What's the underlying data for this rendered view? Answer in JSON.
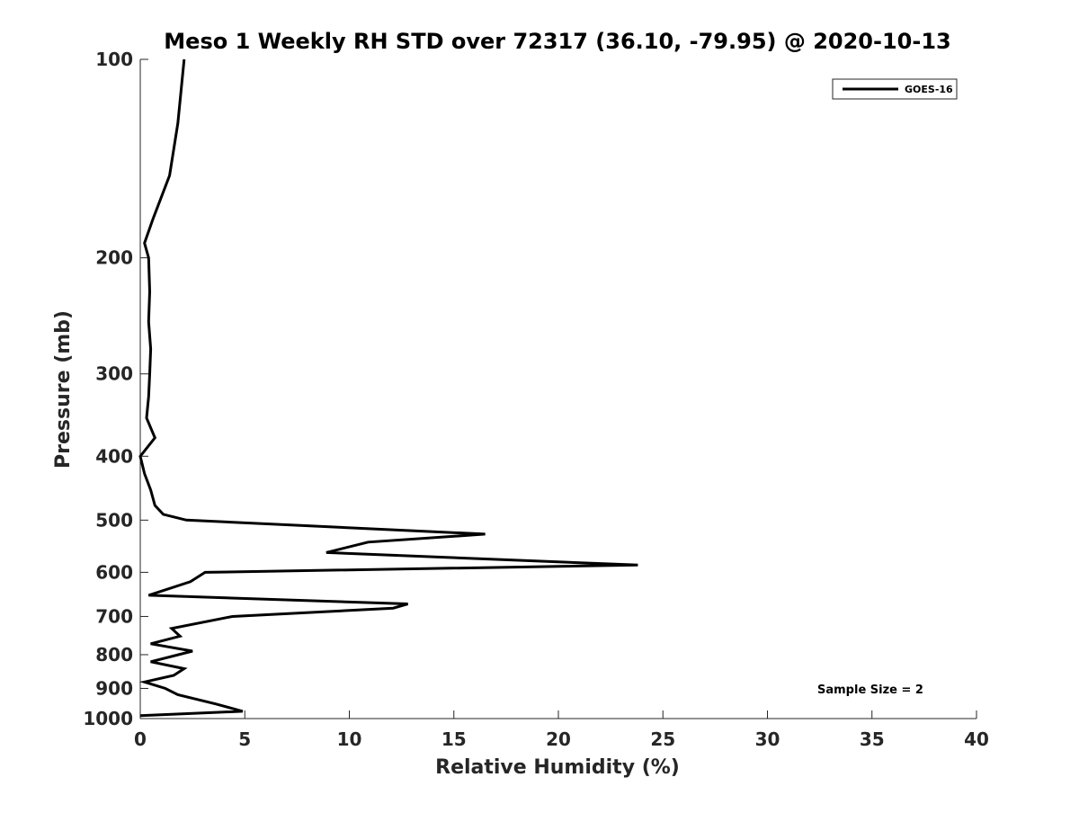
{
  "chart_data": {
    "type": "line",
    "title": "Meso 1 Weekly RH STD over 72317 (36.10, -79.95) @ 2020-10-13",
    "xlabel": "Relative Humidity (%)",
    "ylabel": "Pressure (mb)",
    "xlim": [
      0,
      40
    ],
    "ylim": [
      100,
      1000
    ],
    "y_scale": "log",
    "y_reversed": true,
    "x_ticks": [
      0,
      5,
      10,
      15,
      20,
      25,
      30,
      35,
      40
    ],
    "x_tick_labels": [
      "0",
      "5",
      "10",
      "15",
      "20",
      "25",
      "30",
      "35",
      "40"
    ],
    "y_ticks": [
      100,
      200,
      300,
      400,
      500,
      600,
      700,
      800,
      900,
      1000
    ],
    "y_tick_labels": [
      "100",
      "200",
      "300",
      "400",
      "500",
      "600",
      "700",
      "800",
      "900",
      "1000"
    ],
    "grid": false,
    "legend": {
      "position": "top-right",
      "entries": [
        "GOES-16"
      ]
    },
    "annotation": "Sample Size = 2",
    "series": [
      {
        "name": "GOES-16",
        "color": "#000000",
        "points": [
          [
            2.1,
            100
          ],
          [
            1.8,
            125
          ],
          [
            1.4,
            150
          ],
          [
            0.6,
            175
          ],
          [
            0.2,
            190
          ],
          [
            0.4,
            200
          ],
          [
            0.45,
            225
          ],
          [
            0.4,
            250
          ],
          [
            0.5,
            275
          ],
          [
            0.45,
            300
          ],
          [
            0.4,
            325
          ],
          [
            0.3,
            350
          ],
          [
            0.7,
            375
          ],
          [
            0.0,
            400
          ],
          [
            0.2,
            425
          ],
          [
            0.5,
            450
          ],
          [
            0.7,
            475
          ],
          [
            1.1,
            490
          ],
          [
            2.2,
            500
          ],
          [
            16.5,
            525
          ],
          [
            10.9,
            540
          ],
          [
            8.9,
            560
          ],
          [
            23.8,
            585
          ],
          [
            3.1,
            600
          ],
          [
            2.4,
            620
          ],
          [
            0.4,
            650
          ],
          [
            12.8,
            670
          ],
          [
            12.1,
            680
          ],
          [
            4.4,
            700
          ],
          [
            1.5,
            730
          ],
          [
            1.9,
            750
          ],
          [
            0.5,
            770
          ],
          [
            2.5,
            790
          ],
          [
            0.5,
            820
          ],
          [
            2.1,
            840
          ],
          [
            1.6,
            860
          ],
          [
            0.2,
            880
          ],
          [
            1.2,
            900
          ],
          [
            1.8,
            920
          ],
          [
            3.6,
            950
          ],
          [
            4.9,
            975
          ],
          [
            0.0,
            990
          ]
        ]
      }
    ]
  }
}
